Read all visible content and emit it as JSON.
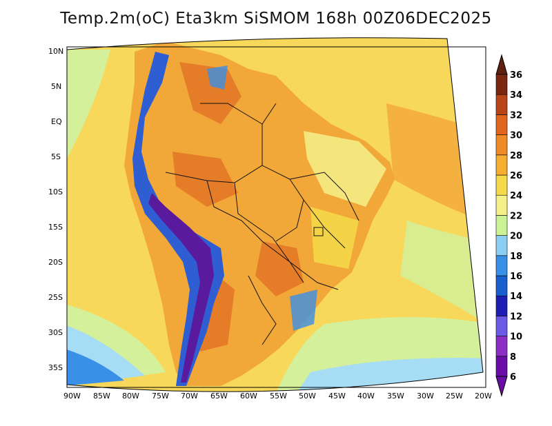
{
  "title": "Temp.2m(oC) Eta3km SiSMOM 168h 00Z06DEC2025",
  "axes": {
    "lat_labels": [
      "10N",
      "5N",
      "EQ",
      "5S",
      "10S",
      "15S",
      "20S",
      "25S",
      "30S",
      "35S"
    ],
    "lon_labels": [
      "90W",
      "85W",
      "80W",
      "75W",
      "70W",
      "65W",
      "60W",
      "55W",
      "50W",
      "45W",
      "40W",
      "35W",
      "30W",
      "25W",
      "20W"
    ]
  },
  "colorbar": {
    "levels": [
      "6",
      "8",
      "10",
      "12",
      "14",
      "16",
      "18",
      "20",
      "22",
      "24",
      "26",
      "28",
      "30",
      "32",
      "34",
      "36"
    ],
    "colors": [
      "#6a0ca6",
      "#8a2ec4",
      "#6a5ae8",
      "#1e1eb4",
      "#1a5fd0",
      "#3a8fe6",
      "#8ccff2",
      "#ccf296",
      "#f4f08a",
      "#f6da4a",
      "#f6ae30",
      "#f08c28",
      "#e2661e",
      "#b8461a",
      "#7a2810"
    ],
    "low_color": "#6a0ca6",
    "high_color": "#5e2010"
  },
  "legend": {
    "ocean_color": "#f8d85a",
    "cool_ocean": "#d4f09a",
    "cold_ocean": "#a6dcf4",
    "land_warm": "#f2a838",
    "land_hot": "#e47c28",
    "andes_cold": "#5a1a9e",
    "andes_cool": "#2e5ed2"
  }
}
